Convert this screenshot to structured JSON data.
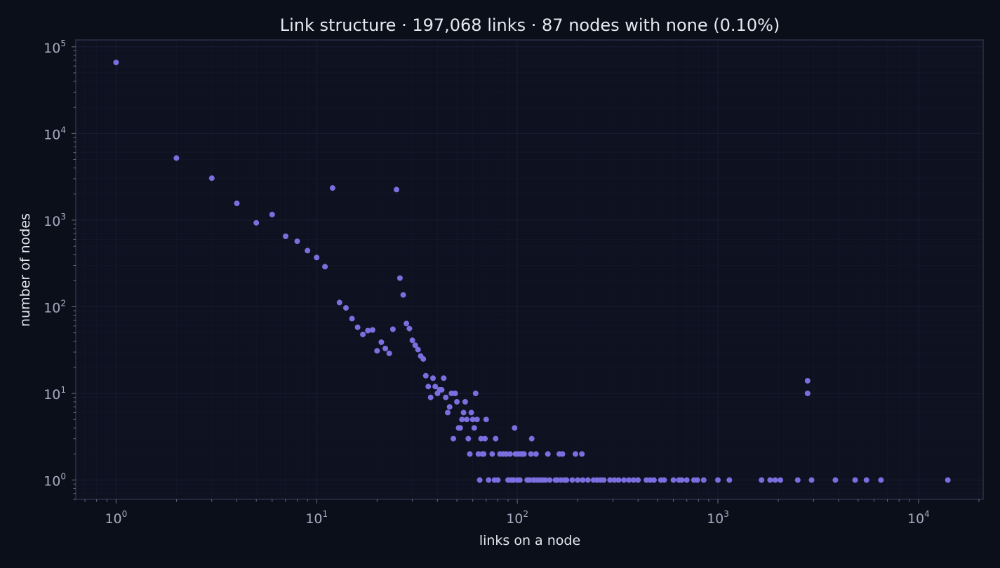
{
  "chart_data": {
    "type": "scatter",
    "title": "Link structure  ·  197,068 links  ·  87 nodes with none (0.10%)",
    "xlabel": "links on a node",
    "ylabel": "number of nodes",
    "x_scale": "log",
    "y_scale": "log",
    "xlim": [
      0.63,
      21000
    ],
    "ylim": [
      0.6,
      120000
    ],
    "grid": true,
    "x_ticks": [
      {
        "base": "10",
        "exp": "0",
        "value": 1
      },
      {
        "base": "10",
        "exp": "1",
        "value": 10
      },
      {
        "base": "10",
        "exp": "2",
        "value": 100
      },
      {
        "base": "10",
        "exp": "3",
        "value": 1000
      },
      {
        "base": "10",
        "exp": "4",
        "value": 10000
      }
    ],
    "y_ticks": [
      {
        "base": "10",
        "exp": "0",
        "value": 1
      },
      {
        "base": "10",
        "exp": "1",
        "value": 10
      },
      {
        "base": "10",
        "exp": "2",
        "value": 100
      },
      {
        "base": "10",
        "exp": "3",
        "value": 1000
      },
      {
        "base": "10",
        "exp": "4",
        "value": 10000
      },
      {
        "base": "10",
        "exp": "5",
        "value": 100000
      }
    ],
    "colors": {
      "background": "#0b0f1a",
      "plot_background": "#0d1120",
      "point": "#7b6fe0",
      "grid": "#1b2033",
      "axis": "#2c3148"
    },
    "points": [
      [
        1,
        66000
      ],
      [
        2,
        5200
      ],
      [
        3,
        3050
      ],
      [
        4,
        1560
      ],
      [
        5,
        930
      ],
      [
        6,
        1160
      ],
      [
        7,
        650
      ],
      [
        8,
        570
      ],
      [
        9,
        445
      ],
      [
        10,
        370
      ],
      [
        11,
        290
      ],
      [
        12,
        2350
      ],
      [
        13,
        112
      ],
      [
        14,
        97
      ],
      [
        15,
        73
      ],
      [
        16,
        58
      ],
      [
        17,
        48
      ],
      [
        18,
        53
      ],
      [
        19,
        54
      ],
      [
        20,
        31
      ],
      [
        21,
        39
      ],
      [
        22,
        33
      ],
      [
        23,
        29
      ],
      [
        24,
        55
      ],
      [
        25,
        2250
      ],
      [
        26,
        214
      ],
      [
        27,
        137
      ],
      [
        28,
        64
      ],
      [
        29,
        56
      ],
      [
        30,
        41
      ],
      [
        31,
        36
      ],
      [
        32,
        32
      ],
      [
        33,
        27
      ],
      [
        34,
        25
      ],
      [
        35,
        16
      ],
      [
        36,
        12
      ],
      [
        37,
        9
      ],
      [
        38,
        15
      ],
      [
        39,
        12
      ],
      [
        40,
        10
      ],
      [
        41,
        11
      ],
      [
        42,
        11
      ],
      [
        43,
        15
      ],
      [
        44,
        9
      ],
      [
        45,
        6
      ],
      [
        46,
        7
      ],
      [
        47,
        10
      ],
      [
        48,
        3
      ],
      [
        49,
        10
      ],
      [
        50,
        8
      ],
      [
        51,
        4
      ],
      [
        52,
        4
      ],
      [
        53,
        5
      ],
      [
        54,
        6
      ],
      [
        55,
        8
      ],
      [
        56,
        5
      ],
      [
        57,
        3
      ],
      [
        58,
        2
      ],
      [
        59,
        6
      ],
      [
        60,
        5
      ],
      [
        61,
        4
      ],
      [
        62,
        10
      ],
      [
        63,
        5
      ],
      [
        64,
        2
      ],
      [
        65,
        1
      ],
      [
        66,
        3
      ],
      [
        67,
        2
      ],
      [
        68,
        2
      ],
      [
        69,
        3
      ],
      [
        70,
        5
      ],
      [
        72,
        1
      ],
      [
        75,
        2
      ],
      [
        77,
        1
      ],
      [
        78,
        3
      ],
      [
        80,
        1
      ],
      [
        82,
        2
      ],
      [
        85,
        2
      ],
      [
        88,
        2
      ],
      [
        90,
        1
      ],
      [
        92,
        2
      ],
      [
        93,
        1
      ],
      [
        95,
        1
      ],
      [
        96,
        1
      ],
      [
        97,
        4
      ],
      [
        98,
        2
      ],
      [
        100,
        1
      ],
      [
        101,
        2
      ],
      [
        103,
        1
      ],
      [
        104,
        2
      ],
      [
        106,
        2
      ],
      [
        108,
        2
      ],
      [
        112,
        1
      ],
      [
        115,
        1
      ],
      [
        117,
        2
      ],
      [
        118,
        3
      ],
      [
        120,
        1
      ],
      [
        122,
        1
      ],
      [
        124,
        2
      ],
      [
        126,
        1
      ],
      [
        130,
        1
      ],
      [
        134,
        1
      ],
      [
        138,
        1
      ],
      [
        142,
        2
      ],
      [
        145,
        1
      ],
      [
        155,
        1
      ],
      [
        158,
        1
      ],
      [
        162,
        2
      ],
      [
        165,
        1
      ],
      [
        168,
        2
      ],
      [
        172,
        1
      ],
      [
        176,
        1
      ],
      [
        188,
        1
      ],
      [
        195,
        2
      ],
      [
        200,
        1
      ],
      [
        210,
        2
      ],
      [
        212,
        1
      ],
      [
        225,
        1
      ],
      [
        240,
        1
      ],
      [
        250,
        1
      ],
      [
        260,
        1
      ],
      [
        270,
        1
      ],
      [
        290,
        1
      ],
      [
        305,
        1
      ],
      [
        320,
        1
      ],
      [
        340,
        1
      ],
      [
        360,
        1
      ],
      [
        380,
        1
      ],
      [
        400,
        1
      ],
      [
        440,
        1
      ],
      [
        460,
        1
      ],
      [
        480,
        1
      ],
      [
        520,
        1
      ],
      [
        540,
        1
      ],
      [
        600,
        1
      ],
      [
        640,
        1
      ],
      [
        660,
        1
      ],
      [
        700,
        1
      ],
      [
        760,
        1
      ],
      [
        790,
        1
      ],
      [
        850,
        1
      ],
      [
        1000,
        1
      ],
      [
        1140,
        1
      ],
      [
        1650,
        1
      ],
      [
        1820,
        1
      ],
      [
        1930,
        1
      ],
      [
        2050,
        1
      ],
      [
        2500,
        1
      ],
      [
        2800,
        14
      ],
      [
        2800,
        10
      ],
      [
        2930,
        1
      ],
      [
        3850,
        1
      ],
      [
        4830,
        1
      ],
      [
        5500,
        1
      ],
      [
        6500,
        1
      ],
      [
        14000,
        1
      ]
    ]
  }
}
